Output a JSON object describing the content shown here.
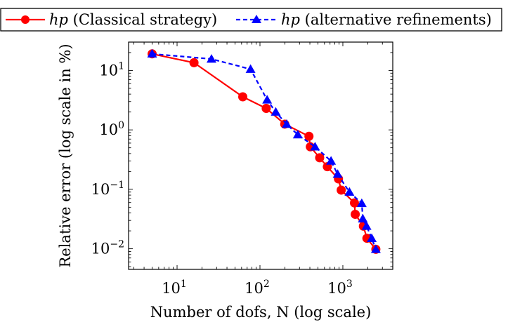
{
  "chart_data": {
    "type": "line",
    "title": "",
    "xlabel": "Number of dofs, N (log scale)",
    "ylabel": "Relative error (log scale in %)",
    "x_scale": "log",
    "y_scale": "log",
    "xlim": [
      2.6,
      4000
    ],
    "ylim": [
      0.0045,
      30
    ],
    "x_ticks": [
      {
        "value": 10,
        "base": "10",
        "exp": "1"
      },
      {
        "value": 100,
        "base": "10",
        "exp": "2"
      },
      {
        "value": 1000,
        "base": "10",
        "exp": "3"
      }
    ],
    "y_ticks": [
      {
        "value": 10,
        "base": "10",
        "exp": "1"
      },
      {
        "value": 1,
        "base": "10",
        "exp": "0"
      },
      {
        "value": 0.1,
        "base": "10",
        "exp": "−1"
      },
      {
        "value": 0.01,
        "base": "10",
        "exp": "−2"
      }
    ],
    "grid": false,
    "legend_position": "top",
    "series": [
      {
        "name": "hp (Classical strategy)",
        "legend_italic": "hp",
        "legend_rest": " (Classical strategy)",
        "color": "#ff0000",
        "marker": "circle",
        "line_style": "solid",
        "points": [
          [
            5,
            19
          ],
          [
            16,
            13.5
          ],
          [
            62,
            3.6
          ],
          [
            119,
            2.3
          ],
          [
            199,
            1.25
          ],
          [
            390,
            0.78
          ],
          [
            405,
            0.52
          ],
          [
            525,
            0.34
          ],
          [
            650,
            0.24
          ],
          [
            885,
            0.15
          ],
          [
            955,
            0.097
          ],
          [
            1380,
            0.059
          ],
          [
            1410,
            0.038
          ],
          [
            1770,
            0.024
          ],
          [
            1950,
            0.015
          ],
          [
            2500,
            0.0098
          ]
        ]
      },
      {
        "name": "hp (alternative refinements)",
        "legend_italic": "hp",
        "legend_rest": " (alternative refinements)",
        "color": "#0000ff",
        "marker": "triangle",
        "line_style": "dashed",
        "points": [
          [
            5,
            19
          ],
          [
            26,
            15.6
          ],
          [
            77,
            10.5
          ],
          [
            122,
            3.2
          ],
          [
            155,
            2.0
          ],
          [
            210,
            1.25
          ],
          [
            286,
            0.83
          ],
          [
            462,
            0.52
          ],
          [
            720,
            0.3
          ],
          [
            865,
            0.18
          ],
          [
            1200,
            0.09
          ],
          [
            1690,
            0.058
          ],
          [
            1740,
            0.032
          ],
          [
            1930,
            0.024
          ],
          [
            2230,
            0.015
          ],
          [
            2500,
            0.0098
          ]
        ]
      }
    ]
  }
}
